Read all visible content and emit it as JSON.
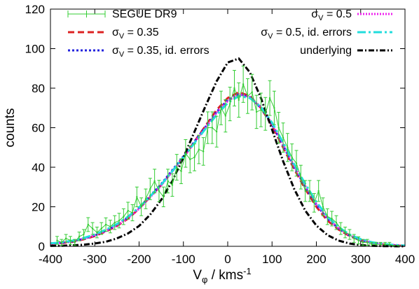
{
  "chart_data": {
    "type": "line",
    "xlabel_main": "V",
    "xlabel_sub": "φ",
    "xlabel_rest": " / kms",
    "xlabel_sup": "-1",
    "ylabel": "counts",
    "xlim": [
      -400,
      400
    ],
    "ylim": [
      0,
      120
    ],
    "xticks": [
      "-400",
      "-300",
      "-200",
      "-100",
      "0",
      "100",
      "200",
      "300",
      "400"
    ],
    "yticks": [
      "0",
      "20",
      "40",
      "60",
      "80",
      "100",
      "120"
    ],
    "legend_position": "top",
    "data_series": {
      "name": "SEGUE DR9",
      "color": "#33cc33",
      "x": [
        -385,
        -375,
        -365,
        -355,
        -345,
        -335,
        -325,
        -315,
        -305,
        -295,
        -285,
        -275,
        -265,
        -255,
        -245,
        -235,
        -225,
        -215,
        -205,
        -195,
        -185,
        -175,
        -165,
        -155,
        -145,
        -135,
        -125,
        -115,
        -105,
        -95,
        -85,
        -75,
        -65,
        -55,
        -45,
        -35,
        -25,
        -15,
        -5,
        5,
        15,
        25,
        35,
        45,
        55,
        65,
        75,
        85,
        95,
        105,
        115,
        125,
        135,
        145,
        155,
        165,
        175,
        185,
        195,
        205,
        215,
        225,
        235,
        245,
        255,
        265,
        275,
        285,
        295,
        305,
        315,
        325,
        335,
        345,
        355,
        365,
        375,
        385
      ],
      "y": [
        3,
        2,
        4,
        3,
        2,
        5,
        6,
        11,
        9,
        7,
        9,
        11,
        10,
        12,
        13,
        15,
        18,
        17,
        25,
        20,
        24,
        29,
        33,
        28,
        25,
        33,
        31,
        40,
        38,
        47,
        44,
        45,
        49,
        48,
        60,
        60,
        58,
        70,
        66,
        72,
        80,
        74,
        82,
        76,
        78,
        68,
        69,
        67,
        75,
        70,
        60,
        55,
        50,
        45,
        42,
        35,
        28,
        28,
        22,
        28,
        20,
        15,
        14,
        12,
        9,
        7,
        6,
        4,
        3,
        2,
        2,
        1,
        1,
        1,
        1,
        1,
        0,
        0
      ],
      "err": [
        2,
        1.5,
        2,
        2,
        1.5,
        2.2,
        2.5,
        3.5,
        3,
        2.7,
        3,
        3.4,
        3.2,
        3.5,
        3.7,
        4,
        4.3,
        4.1,
        5,
        4.5,
        5,
        5.4,
        6,
        5.4,
        5,
        6,
        5.7,
        6.5,
        6.3,
        7,
        6.8,
        6.8,
        7.2,
        7,
        8,
        8,
        7.8,
        8.5,
        8.2,
        8.5,
        9,
        8.7,
        9.2,
        8.8,
        9,
        8.4,
        8.5,
        8.3,
        8.8,
        8.5,
        7.8,
        7.4,
        7.1,
        6.8,
        6.5,
        6,
        5.3,
        5.3,
        4.7,
        5.3,
        4.5,
        4,
        3.7,
        3.5,
        3,
        2.7,
        2.5,
        2,
        1.8,
        1.5,
        1.5,
        1,
        1,
        1,
        1,
        1,
        0.5,
        0.5
      ]
    },
    "model_series": [
      {
        "name": "σ_V = 0.35",
        "color": "#dd2222",
        "dash": "9,5",
        "width": 3,
        "x": [
          -400,
          -375,
          -350,
          -325,
          -300,
          -275,
          -250,
          -225,
          -200,
          -175,
          -150,
          -125,
          -100,
          -75,
          -50,
          -25,
          0,
          25,
          50,
          75,
          100,
          125,
          150,
          175,
          200,
          225,
          250,
          275,
          300,
          325,
          350,
          375,
          400
        ],
        "y": [
          1.2,
          1.6,
          2.3,
          3.5,
          5.2,
          7.5,
          10.3,
          14,
          19,
          25,
          31,
          38,
          45,
          53,
          61,
          69,
          75,
          78,
          76,
          70,
          61,
          50,
          39,
          29,
          20,
          13,
          8.5,
          5.2,
          3,
          1.8,
          1,
          0.5,
          0.2
        ]
      },
      {
        "name": "σ_V = 0.35, id. errors",
        "color": "#2222dd",
        "dash": "3,3",
        "width": 3,
        "x": [
          -400,
          -375,
          -350,
          -325,
          -300,
          -275,
          -250,
          -225,
          -200,
          -175,
          -150,
          -125,
          -100,
          -75,
          -50,
          -25,
          0,
          25,
          50,
          75,
          100,
          125,
          150,
          175,
          200,
          225,
          250,
          275,
          300,
          325,
          350,
          375,
          400
        ],
        "y": [
          1.4,
          1.8,
          2.5,
          3.8,
          5.5,
          7.9,
          10.8,
          14.6,
          19.5,
          25.5,
          31.5,
          38.5,
          45.5,
          53,
          60.5,
          68,
          74,
          77,
          75.5,
          70,
          61.5,
          51,
          40,
          30,
          21,
          14,
          9,
          5.5,
          3.2,
          1.9,
          1.1,
          0.6,
          0.3
        ]
      },
      {
        "name": "σ_V = 0.5",
        "color": "#ee22ee",
        "dash": "2,2",
        "width": 3,
        "x": [
          -400,
          -375,
          -350,
          -325,
          -300,
          -275,
          -250,
          -225,
          -200,
          -175,
          -150,
          -125,
          -100,
          -75,
          -50,
          -25,
          0,
          25,
          50,
          75,
          100,
          125,
          150,
          175,
          200,
          225,
          250,
          275,
          300,
          325,
          350,
          375,
          400
        ],
        "y": [
          1.3,
          1.8,
          2.6,
          3.8,
          5.5,
          7.8,
          10.6,
          14.3,
          19,
          24.8,
          30.8,
          37.8,
          45,
          52.5,
          60,
          67.5,
          73.5,
          77,
          75.5,
          70.5,
          62,
          51.5,
          40.5,
          30.5,
          21.5,
          14.3,
          9.2,
          5.6,
          3.3,
          1.9,
          1.1,
          0.6,
          0.3
        ]
      },
      {
        "name": "σ_V = 0.5, id. errors",
        "color": "#22dddd",
        "dash": "12,4,3,4",
        "width": 3,
        "x": [
          -400,
          -375,
          -350,
          -325,
          -300,
          -275,
          -250,
          -225,
          -200,
          -175,
          -150,
          -125,
          -100,
          -75,
          -50,
          -25,
          0,
          25,
          50,
          75,
          100,
          125,
          150,
          175,
          200,
          225,
          250,
          275,
          300,
          325,
          350,
          375,
          400
        ],
        "y": [
          1.5,
          2,
          2.9,
          4.2,
          6,
          8.4,
          11.3,
          15,
          19.7,
          25.3,
          31.2,
          38,
          45,
          52.3,
          59.5,
          66.5,
          72.5,
          76,
          75,
          70.5,
          62.5,
          52.5,
          41.5,
          31.5,
          22.5,
          15,
          9.8,
          6,
          3.6,
          2.1,
          1.2,
          0.7,
          0.4
        ]
      },
      {
        "name": "underlying",
        "color": "#000000",
        "dash": "8,3,2,3",
        "width": 3,
        "x": [
          -400,
          -375,
          -350,
          -325,
          -300,
          -275,
          -250,
          -225,
          -200,
          -175,
          -150,
          -125,
          -100,
          -75,
          -50,
          -25,
          0,
          25,
          50,
          75,
          100,
          125,
          150,
          175,
          200,
          225,
          250,
          275,
          300,
          325,
          350,
          375,
          400
        ],
        "y": [
          0.2,
          0.3,
          0.5,
          0.8,
          1.4,
          2.3,
          4,
          6.5,
          10.3,
          16,
          23.5,
          33,
          45,
          58,
          71,
          83.5,
          93,
          95,
          88,
          75,
          59,
          43,
          29,
          18,
          10.5,
          5.7,
          2.9,
          1.4,
          0.6,
          0.3,
          0.1,
          0.05,
          0
        ]
      }
    ],
    "legend": {
      "left": [
        {
          "base": "SEGUE DR9",
          "sub": "",
          "rest": "",
          "series": "data"
        },
        {
          "base": "σ",
          "sub": "V",
          "rest": " = 0.35",
          "series": 0
        },
        {
          "base": "σ",
          "sub": "V",
          "rest": " = 0.35, id. errors",
          "series": 1
        }
      ],
      "right": [
        {
          "base": "σ",
          "sub": "V",
          "rest": " = 0.5",
          "series": 2
        },
        {
          "base": "σ",
          "sub": "V",
          "rest": " = 0.5, id. errors",
          "series": 3
        },
        {
          "base": "underlying",
          "sub": "",
          "rest": "",
          "series": 4
        }
      ]
    }
  }
}
